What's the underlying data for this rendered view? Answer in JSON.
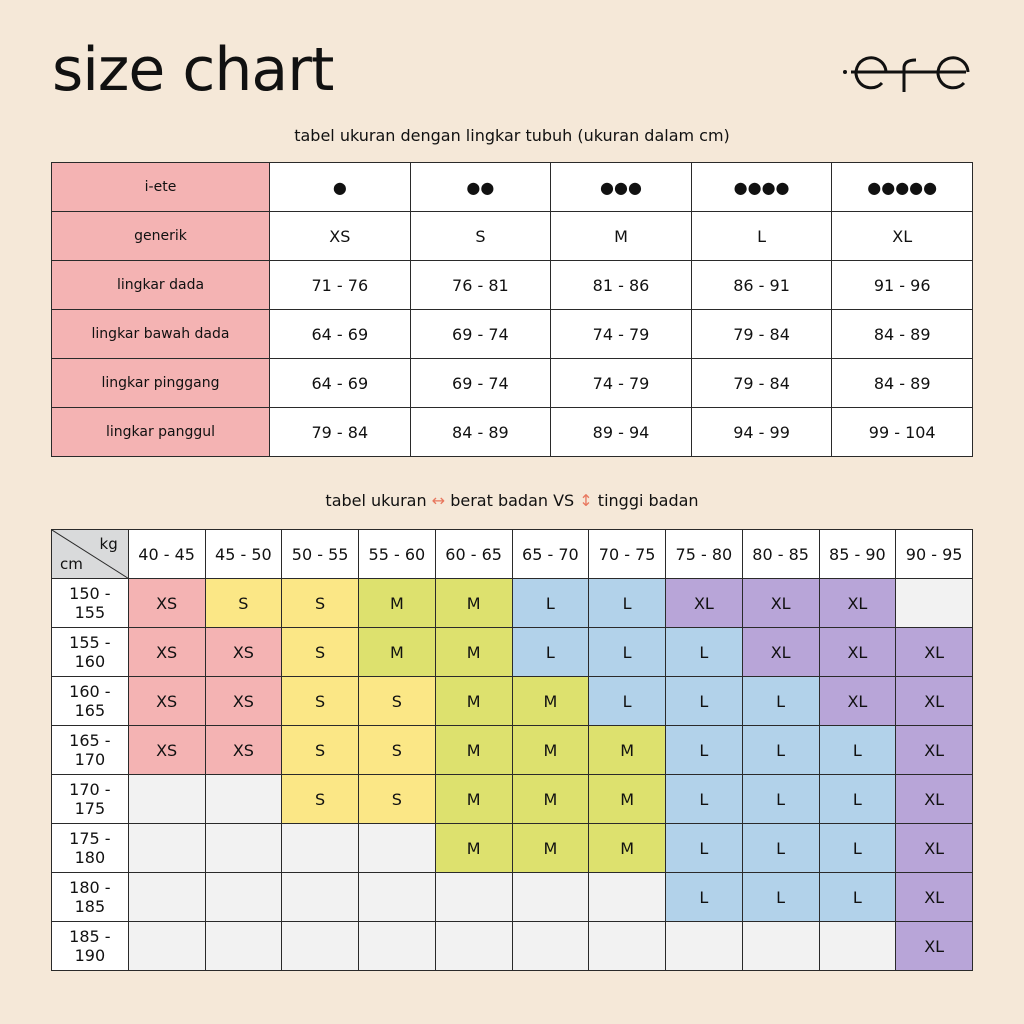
{
  "title": "size chart",
  "logo_text": "ete",
  "table1": {
    "caption": "tabel ukuran dengan lingkar tubuh (ukuran dalam cm)",
    "rows": [
      {
        "label": "i-ete",
        "values": [
          "●",
          "●●",
          "●●●",
          "●●●●",
          "●●●●●"
        ]
      },
      {
        "label": "generik",
        "values": [
          "XS",
          "S",
          "M",
          "L",
          "XL"
        ]
      },
      {
        "label": "lingkar dada",
        "values": [
          "71 - 76",
          "76 - 81",
          "81 - 86",
          "86 - 91",
          "91 - 96"
        ]
      },
      {
        "label": "lingkar bawah dada",
        "values": [
          "64 - 69",
          "69 - 74",
          "74 - 79",
          "79 - 84",
          "84 - 89"
        ]
      },
      {
        "label": "lingkar pinggang",
        "values": [
          "64 - 69",
          "69 - 74",
          "74 - 79",
          "79 - 84",
          "84 - 89"
        ]
      },
      {
        "label": "lingkar panggul",
        "values": [
          "79 - 84",
          "84 - 89",
          "89 - 94",
          "94 - 99",
          "99 - 104"
        ]
      }
    ]
  },
  "table2": {
    "caption_part1": "tabel ukuran",
    "arrow_horizontal": "↔",
    "caption_part2": "berat badan VS",
    "arrow_vertical": "↕",
    "caption_part3": "tinggi badan",
    "corner_kg": "kg",
    "corner_cm": "cm",
    "weights": [
      "40 - 45",
      "45 - 50",
      "50 - 55",
      "55 - 60",
      "60 - 65",
      "65 - 70",
      "70 - 75",
      "75 - 80",
      "80 - 85",
      "85 - 90",
      "90 - 95"
    ],
    "rows": [
      {
        "height": "150 - 155",
        "sizes": [
          "XS",
          "S",
          "S",
          "M",
          "M",
          "L",
          "L",
          "XL",
          "XL",
          "XL",
          ""
        ]
      },
      {
        "height": "155 - 160",
        "sizes": [
          "XS",
          "XS",
          "S",
          "M",
          "M",
          "L",
          "L",
          "L",
          "XL",
          "XL",
          "XL"
        ]
      },
      {
        "height": "160 - 165",
        "sizes": [
          "XS",
          "XS",
          "S",
          "S",
          "M",
          "M",
          "L",
          "L",
          "L",
          "XL",
          "XL"
        ]
      },
      {
        "height": "165 - 170",
        "sizes": [
          "XS",
          "XS",
          "S",
          "S",
          "M",
          "M",
          "M",
          "L",
          "L",
          "L",
          "XL"
        ]
      },
      {
        "height": "170 - 175",
        "sizes": [
          "",
          "",
          "S",
          "S",
          "M",
          "M",
          "M",
          "L",
          "L",
          "L",
          "XL"
        ]
      },
      {
        "height": "175 - 180",
        "sizes": [
          "",
          "",
          "",
          "",
          "M",
          "M",
          "M",
          "L",
          "L",
          "L",
          "XL"
        ]
      },
      {
        "height": "180 - 185",
        "sizes": [
          "",
          "",
          "",
          "",
          "",
          "",
          "",
          "L",
          "L",
          "L",
          "XL"
        ]
      },
      {
        "height": "185 - 190",
        "sizes": [
          "",
          "",
          "",
          "",
          "",
          "",
          "",
          "",
          "",
          "",
          "XL"
        ]
      }
    ]
  },
  "colors": {
    "background": "#f5e8d8",
    "XS": "#f4b3b3",
    "S": "#fbe786",
    "M": "#dde16e",
    "L": "#b2d2ea",
    "XL": "#b8a5d8",
    "empty": "#f2f2f2",
    "arrow": "#e8775e"
  }
}
